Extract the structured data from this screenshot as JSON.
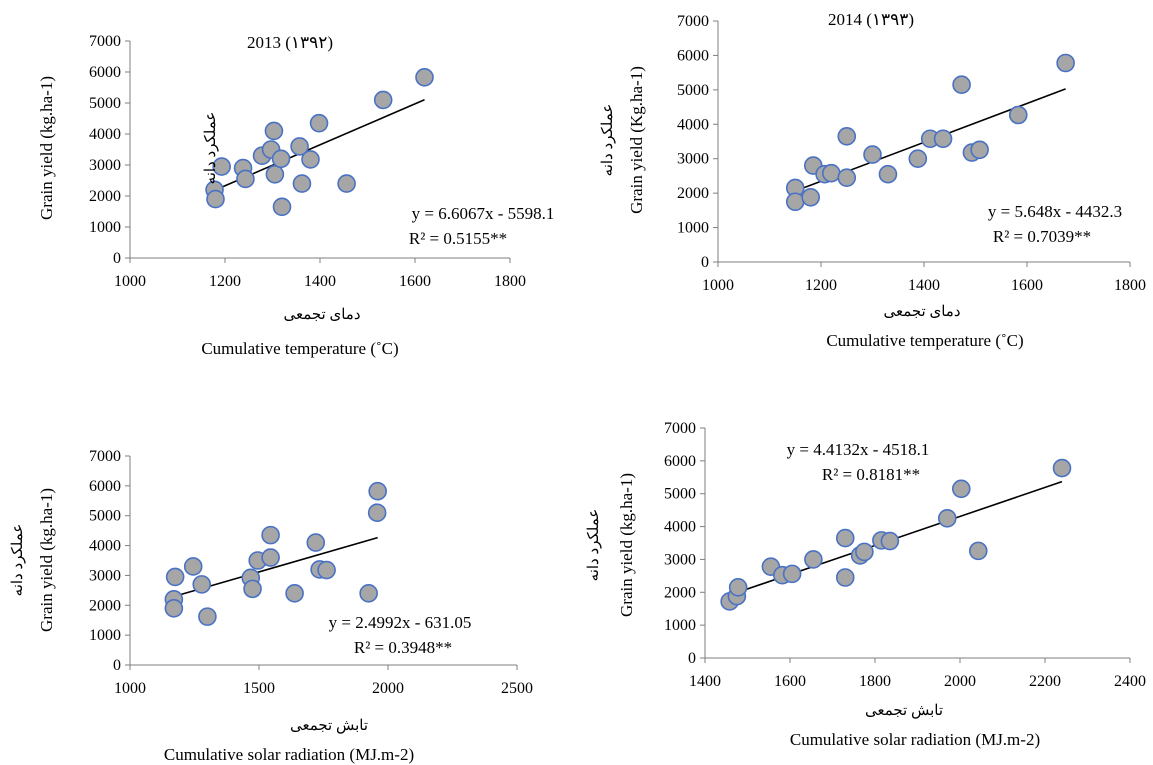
{
  "chart_data": [
    {
      "type": "scatter",
      "title": "2013 (۱۳۹۲)",
      "xlabel": "Cumulative temperature (˚C)",
      "xlabel_fa": "دمای تجمعی",
      "ylabel": "Grain yield (kg.ha-1)",
      "ylabel_fa": "عملکرد دانه",
      "xlim": [
        1000,
        1800
      ],
      "ylim": [
        0,
        7000
      ],
      "xticks": [
        1000,
        1200,
        1400,
        1600,
        1800
      ],
      "yticks": [
        0,
        1000,
        2000,
        3000,
        4000,
        5000,
        6000,
        7000
      ],
      "points": [
        [
          1178,
          2200
        ],
        [
          1180,
          1900
        ],
        [
          1193,
          2950
        ],
        [
          1238,
          2900
        ],
        [
          1243,
          2550
        ],
        [
          1278,
          3300
        ],
        [
          1297,
          3500
        ],
        [
          1303,
          4100
        ],
        [
          1305,
          2700
        ],
        [
          1318,
          3200
        ],
        [
          1320,
          1650
        ],
        [
          1357,
          3600
        ],
        [
          1362,
          2400
        ],
        [
          1380,
          3180
        ],
        [
          1398,
          4350
        ],
        [
          1456,
          2400
        ],
        [
          1533,
          5100
        ],
        [
          1620,
          5830
        ]
      ],
      "trendline": {
        "slope": 6.6067,
        "intercept": -5598.1,
        "x_range": [
          1178,
          1620
        ]
      },
      "equation": "y = 6.6067x - 5598.1",
      "r2": "R² = 0.5155**"
    },
    {
      "type": "scatter",
      "title": "2014 (۱۳۹۳)",
      "xlabel": "Cumulative temperature (˚C)",
      "xlabel_fa": "دمای تجمعی",
      "ylabel": "Grain yield (Kg.ha-1)",
      "ylabel_fa": "عملکرد دانه",
      "xlim": [
        1000,
        1800
      ],
      "ylim": [
        0,
        7000
      ],
      "xticks": [
        1000,
        1200,
        1400,
        1600,
        1800
      ],
      "yticks": [
        0,
        1000,
        2000,
        3000,
        4000,
        5000,
        6000,
        7000
      ],
      "points": [
        [
          1150,
          2150
        ],
        [
          1150,
          1750
        ],
        [
          1180,
          1880
        ],
        [
          1185,
          2800
        ],
        [
          1207,
          2550
        ],
        [
          1220,
          2580
        ],
        [
          1250,
          3650
        ],
        [
          1250,
          2450
        ],
        [
          1300,
          3120
        ],
        [
          1330,
          2550
        ],
        [
          1388,
          3000
        ],
        [
          1412,
          3580
        ],
        [
          1437,
          3580
        ],
        [
          1473,
          5150
        ],
        [
          1493,
          3180
        ],
        [
          1508,
          3260
        ],
        [
          1583,
          4270
        ],
        [
          1675,
          5780
        ]
      ],
      "trendline": {
        "slope": 5.648,
        "intercept": -4432.3,
        "x_range": [
          1150,
          1675
        ]
      },
      "equation": "y = 5.648x - 4432.3",
      "r2": "R² = 0.7039**"
    },
    {
      "type": "scatter",
      "title": "",
      "xlabel": "Cumulative solar radiation (MJ.m-2)",
      "xlabel_fa": "تابش تجمعی",
      "ylabel": "Grain yield (kg.ha-1)",
      "ylabel_fa": "عملکرد دانه",
      "xlim": [
        1000,
        2500
      ],
      "ylim": [
        0,
        7000
      ],
      "xticks": [
        1000,
        1500,
        2000,
        2500
      ],
      "yticks": [
        0,
        1000,
        2000,
        3000,
        4000,
        5000,
        6000,
        7000
      ],
      "points": [
        [
          1170,
          2200
        ],
        [
          1170,
          1900
        ],
        [
          1175,
          2950
        ],
        [
          1245,
          3300
        ],
        [
          1278,
          2700
        ],
        [
          1300,
          1620
        ],
        [
          1468,
          2920
        ],
        [
          1475,
          2550
        ],
        [
          1495,
          3500
        ],
        [
          1545,
          3600
        ],
        [
          1545,
          4350
        ],
        [
          1638,
          2400
        ],
        [
          1720,
          4100
        ],
        [
          1735,
          3200
        ],
        [
          1762,
          3180
        ],
        [
          1925,
          2400
        ],
        [
          1958,
          5100
        ],
        [
          1960,
          5820
        ]
      ],
      "trendline": {
        "slope": 2.4992,
        "intercept": -631.05,
        "x_range": [
          1170,
          1960
        ]
      },
      "equation": "y = 2.4992x - 631.05",
      "r2": "R² = 0.3948**"
    },
    {
      "type": "scatter",
      "title": "",
      "xlabel": "Cumulative solar radiation (MJ.m-2)",
      "xlabel_fa": "تابش تجمعی",
      "ylabel": "Grain yield (kg.ha-1)",
      "ylabel_fa": "عملکرد دانه",
      "xlim": [
        1400,
        2400
      ],
      "ylim": [
        0,
        7000
      ],
      "xticks": [
        1400,
        1600,
        1800,
        2000,
        2200,
        2400
      ],
      "yticks": [
        0,
        1000,
        2000,
        3000,
        4000,
        5000,
        6000,
        7000
      ],
      "points": [
        [
          1458,
          1720
        ],
        [
          1475,
          1880
        ],
        [
          1478,
          2150
        ],
        [
          1555,
          2780
        ],
        [
          1582,
          2520
        ],
        [
          1605,
          2560
        ],
        [
          1655,
          3000
        ],
        [
          1730,
          3650
        ],
        [
          1730,
          2450
        ],
        [
          1765,
          3120
        ],
        [
          1775,
          3230
        ],
        [
          1815,
          3580
        ],
        [
          1835,
          3560
        ],
        [
          1970,
          4250
        ],
        [
          2003,
          5150
        ],
        [
          2043,
          3260
        ],
        [
          2240,
          5780
        ]
      ],
      "trendline": {
        "slope": 4.4132,
        "intercept": -4518.1,
        "x_range": [
          1458,
          2240
        ]
      },
      "equation": "y = 4.4132x - 4518.1",
      "r2": "R² = 0.8181**"
    }
  ]
}
